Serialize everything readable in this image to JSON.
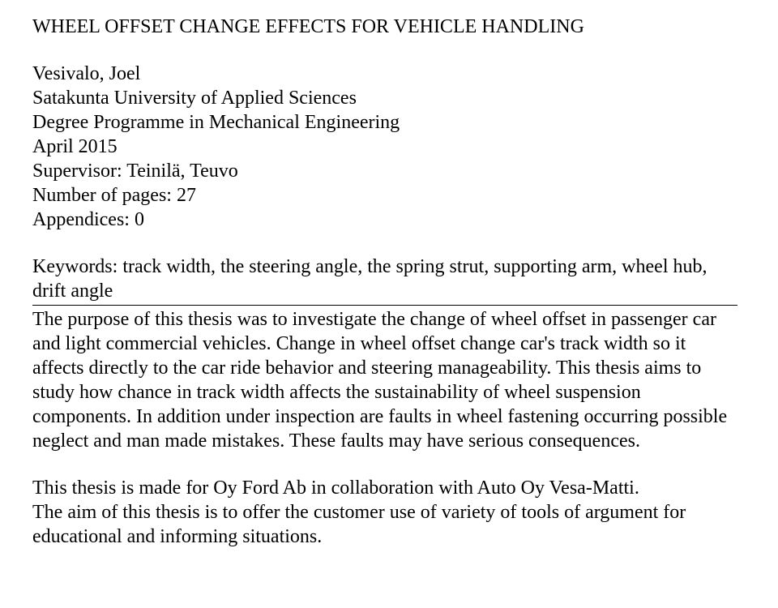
{
  "title": "WHEEL OFFSET CHANGE EFFECTS FOR VEHICLE HANDLING",
  "meta": {
    "author": "Vesivalo, Joel",
    "institution": "Satakunta University of Applied Sciences",
    "programme": "Degree Programme in Mechanical Engineering",
    "date": "April 2015",
    "supervisor": "Supervisor: Teinilä, Teuvo",
    "pages": "Number of pages: 27",
    "appendices": "Appendices: 0"
  },
  "keywords_line": "Keywords: track width, the steering angle, the spring strut, supporting arm, wheel hub, drift angle",
  "abstract_p1": "The purpose of this thesis was to investigate the change of wheel offset in passenger car and light commercial vehicles. Change in wheel offset change car's track width so it affects directly to the car ride behavior and steering manageability. This thesis aims to study how chance in track width affects the sustainability of wheel suspension components. In addition under inspection are faults in wheel fastening occurring possible neglect and man made mistakes. These faults may have serious consequences.",
  "abstract_p2": "This thesis is made for Oy Ford Ab in collaboration with Auto Oy Vesa-Matti.",
  "abstract_p3": "The aim of this thesis is to offer the customer use of variety of tools of argument for educational and informing situations.",
  "style": {
    "font_family": "Times New Roman",
    "font_size_pt": 18,
    "text_color": "#000000",
    "background_color": "#ffffff",
    "hr_color": "#000000"
  }
}
